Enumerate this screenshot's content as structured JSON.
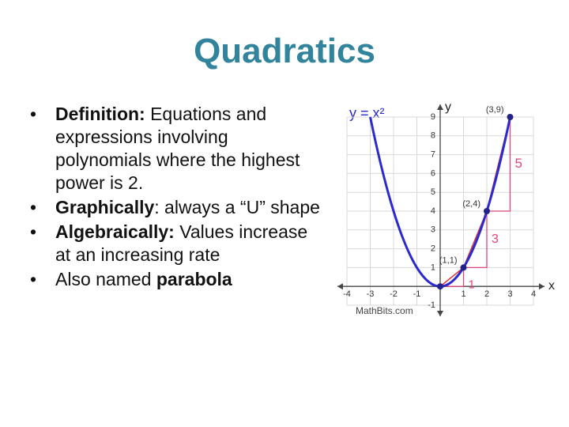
{
  "slide": {
    "title": "Quadratics",
    "bullets": [
      {
        "parts": [
          {
            "text": "Definition:",
            "bold": true
          },
          {
            "text": " Equations and expressions involving polynomials where the highest power is 2.",
            "bold": false
          }
        ]
      },
      {
        "parts": [
          {
            "text": "Graphically",
            "bold": true
          },
          {
            "text": ": always a “U” shape",
            "bold": false
          }
        ]
      },
      {
        "parts": [
          {
            "text": "Algebraically:",
            "bold": true
          },
          {
            "text": " Values increase at an increasing rate",
            "bold": false
          }
        ]
      },
      {
        "parts": [
          {
            "text": "Also named ",
            "bold": false
          },
          {
            "text": "parabola",
            "bold": true
          }
        ]
      }
    ]
  },
  "figure": {
    "equation": "y = x²",
    "x_label": "x",
    "y_label": "y",
    "credit": "MathBits.com",
    "xlim": [
      -4,
      4
    ],
    "ylim": [
      -1,
      9
    ],
    "xticks": [
      -4,
      -3,
      -2,
      -1,
      1,
      2,
      3,
      4
    ],
    "yticks": [
      -1,
      1,
      2,
      3,
      4,
      5,
      6,
      7,
      8,
      9
    ],
    "curve": {
      "color": "#2a2ad0",
      "x": [
        -3,
        -2,
        -1,
        0,
        1,
        2,
        3
      ],
      "y": [
        9,
        4,
        1,
        0,
        1,
        4,
        9
      ]
    },
    "points": [
      {
        "x": 0,
        "y": 0
      },
      {
        "x": 1,
        "y": 1,
        "label": "(1,1)"
      },
      {
        "x": 2,
        "y": 4,
        "label": "(2,4)"
      },
      {
        "x": 3,
        "y": 9,
        "label": "(3,9)"
      }
    ],
    "rise_labels": [
      "1",
      "3",
      "5"
    ],
    "step_color": "#e0457a",
    "secant_color": "#e03030"
  }
}
